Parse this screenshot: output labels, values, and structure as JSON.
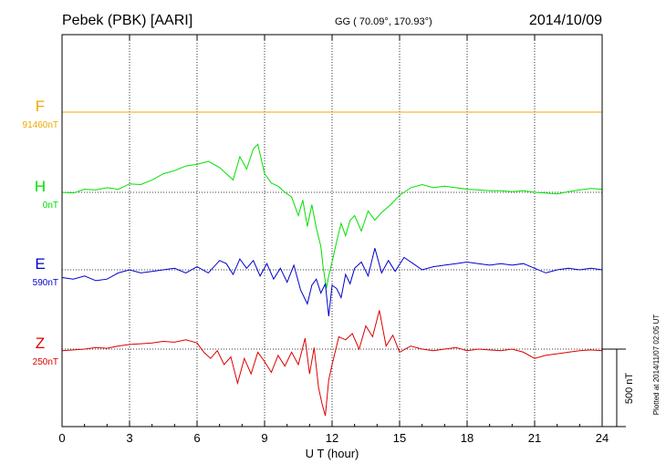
{
  "header": {
    "station": "Pebek (PBK)  [AARI]",
    "coords": "GG ( 70.09°, 170.93°)",
    "date": "2014/10/09"
  },
  "footer": {
    "plotted": "Plotted at 2014/11/07 02:05 UT"
  },
  "scale": {
    "label": "500 nT",
    "value_nT": 500
  },
  "colors": {
    "F": "#f0a800",
    "H": "#00e000",
    "E": "#0000cc",
    "Z": "#dd0000",
    "axis": "#000000",
    "grid": "#000000"
  },
  "chart_data": {
    "type": "line",
    "xlabel": "U T (hour)",
    "xlim": [
      0,
      24
    ],
    "xticks": [
      0,
      3,
      6,
      9,
      12,
      15,
      18,
      21,
      24
    ],
    "xtick_labels": [
      "0",
      "3",
      "6",
      "9",
      "12",
      "15",
      "18",
      "21",
      "24"
    ],
    "grid": true,
    "series": [
      {
        "name": "F",
        "baseline_label": "91460nT",
        "color": "#f0a800",
        "units": "nT offset from baseline",
        "x": [
          0,
          24
        ],
        "y": [
          0,
          0
        ]
      },
      {
        "name": "H",
        "baseline_label": "0nT",
        "color": "#00e000",
        "units": "nT offset from baseline",
        "x": [
          0,
          0.5,
          1,
          1.5,
          2,
          2.5,
          3,
          3.5,
          4,
          4.5,
          5,
          5.5,
          6,
          6.5,
          7,
          7.3,
          7.6,
          7.9,
          8.2,
          8.5,
          8.7,
          9,
          9.3,
          9.6,
          9.9,
          10.2,
          10.5,
          10.7,
          10.9,
          11.1,
          11.3,
          11.5,
          11.6,
          11.75,
          11.85,
          12,
          12.2,
          12.4,
          12.6,
          12.8,
          13,
          13.3,
          13.6,
          13.9,
          14.2,
          14.6,
          15,
          15.5,
          16,
          16.5,
          17,
          17.5,
          18,
          18.5,
          19,
          19.5,
          20,
          20.5,
          21,
          21.5,
          22,
          22.5,
          23,
          23.5,
          24
        ],
        "y": [
          0,
          -5,
          20,
          15,
          30,
          20,
          55,
          50,
          80,
          120,
          140,
          170,
          180,
          200,
          160,
          120,
          80,
          230,
          150,
          280,
          310,
          120,
          60,
          40,
          0,
          -30,
          -150,
          -50,
          -220,
          -80,
          -230,
          -350,
          -480,
          -620,
          -540,
          -450,
          -320,
          -200,
          -280,
          -180,
          -150,
          -250,
          -120,
          -180,
          -130,
          -80,
          -20,
          30,
          50,
          30,
          40,
          30,
          20,
          15,
          10,
          10,
          5,
          10,
          0,
          -5,
          -10,
          5,
          15,
          25,
          20
        ]
      },
      {
        "name": "E",
        "baseline_label": "590nT",
        "color": "#0000cc",
        "units": "nT offset from baseline",
        "x": [
          0,
          0.5,
          1,
          1.5,
          2,
          2.5,
          3,
          3.5,
          4,
          4.5,
          5,
          5.5,
          6,
          6.5,
          7,
          7.3,
          7.6,
          7.9,
          8.2,
          8.5,
          8.8,
          9.1,
          9.4,
          9.7,
          10,
          10.3,
          10.6,
          10.9,
          11.1,
          11.3,
          11.5,
          11.7,
          11.85,
          12,
          12.2,
          12.4,
          12.6,
          12.8,
          13,
          13.3,
          13.6,
          13.9,
          14.2,
          14.5,
          14.8,
          15.2,
          15.6,
          16,
          16.5,
          17,
          17.5,
          18,
          18.5,
          19,
          19.5,
          20,
          20.5,
          21,
          21.5,
          22,
          22.5,
          23,
          23.5,
          24
        ],
        "y": [
          -50,
          -60,
          -40,
          -70,
          -60,
          -20,
          0,
          -20,
          -10,
          0,
          10,
          -20,
          20,
          -20,
          60,
          40,
          -30,
          70,
          10,
          60,
          -40,
          40,
          -60,
          10,
          -80,
          30,
          -130,
          -220,
          -100,
          -60,
          -150,
          -90,
          -300,
          -100,
          -120,
          -180,
          -30,
          -90,
          10,
          50,
          -40,
          140,
          -20,
          60,
          -10,
          80,
          40,
          0,
          20,
          30,
          40,
          50,
          40,
          30,
          40,
          30,
          40,
          10,
          -20,
          0,
          10,
          0,
          10,
          0
        ]
      },
      {
        "name": "Z",
        "baseline_label": "250nT",
        "color": "#dd0000",
        "units": "nT offset from baseline",
        "x": [
          0,
          0.5,
          1,
          1.5,
          2,
          2.5,
          3,
          3.5,
          4,
          4.5,
          5,
          5.5,
          6,
          6.3,
          6.6,
          6.9,
          7.2,
          7.5,
          7.8,
          8.1,
          8.4,
          8.7,
          9,
          9.3,
          9.6,
          9.9,
          10.2,
          10.5,
          10.8,
          11,
          11.2,
          11.4,
          11.55,
          11.7,
          11.85,
          12,
          12.3,
          12.6,
          12.9,
          13.2,
          13.5,
          13.8,
          14.1,
          14.4,
          14.7,
          15,
          15.5,
          16,
          16.5,
          17,
          17.5,
          18,
          18.5,
          19,
          19.5,
          20,
          20.5,
          21,
          21.5,
          22,
          22.5,
          23,
          23.5,
          24
        ],
        "y": [
          -10,
          -5,
          0,
          10,
          5,
          20,
          30,
          35,
          40,
          50,
          45,
          60,
          40,
          -20,
          -60,
          -10,
          -100,
          -50,
          -220,
          -60,
          -160,
          -20,
          -80,
          -150,
          -40,
          -110,
          -20,
          -100,
          70,
          -160,
          10,
          -250,
          -350,
          -430,
          -200,
          -100,
          80,
          60,
          100,
          0,
          150,
          80,
          250,
          20,
          90,
          -20,
          20,
          0,
          -10,
          0,
          10,
          -10,
          0,
          -5,
          -10,
          0,
          -20,
          -60,
          -40,
          -30,
          -20,
          -10,
          -5,
          -10
        ]
      }
    ]
  }
}
